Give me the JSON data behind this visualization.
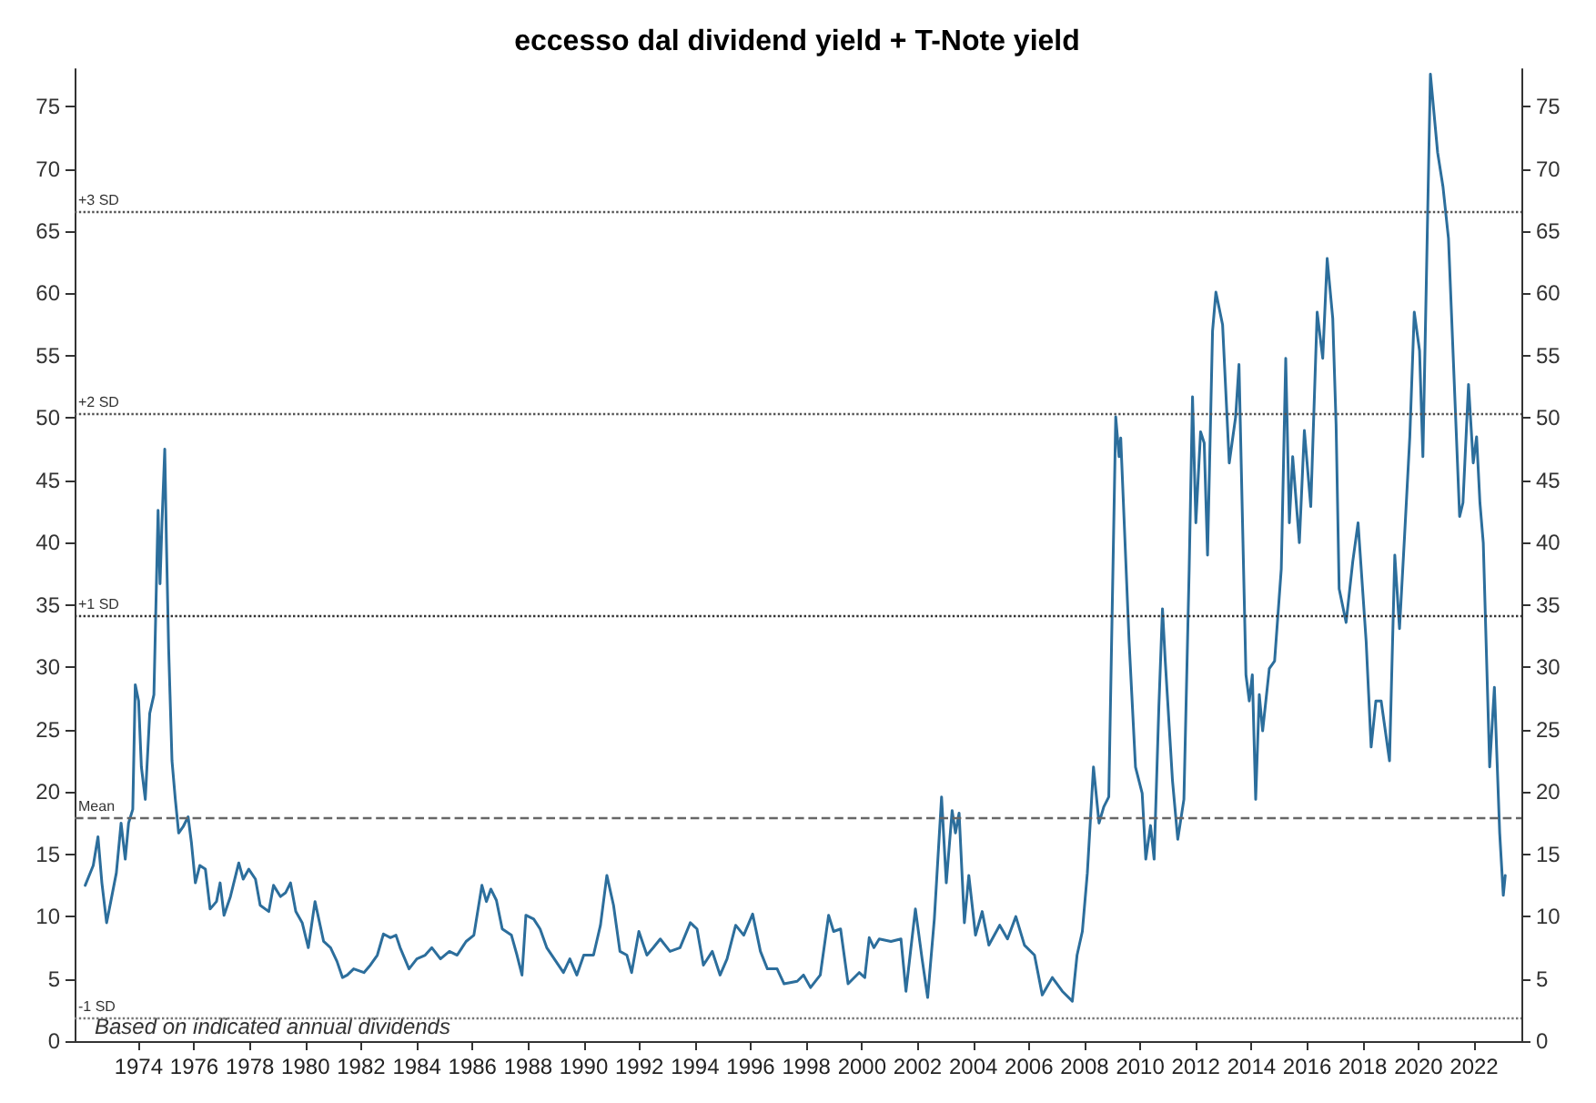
{
  "chart_data": {
    "type": "line",
    "title": "eccesso dal dividend yield + T-Note yield",
    "annotations": [
      "Based on indicated annual dividends"
    ],
    "xlim": [
      1971.7,
      2023.7
    ],
    "xticks": [
      1974,
      1976,
      1978,
      1980,
      1982,
      1984,
      1986,
      1988,
      1990,
      1992,
      1994,
      1996,
      1998,
      2000,
      2002,
      2004,
      2006,
      2008,
      2010,
      2012,
      2014,
      2016,
      2018,
      2020,
      2022
    ],
    "ylim": [
      0,
      78
    ],
    "yticks": [
      0,
      5,
      10,
      15,
      20,
      25,
      30,
      35,
      40,
      45,
      50,
      55,
      60,
      65,
      70,
      75
    ],
    "y2lim": [
      0,
      78
    ],
    "y2ticks": [
      0,
      5,
      10,
      15,
      20,
      25,
      30,
      35,
      40,
      45,
      50,
      55,
      60,
      65,
      70,
      75
    ],
    "grid": false,
    "marker": "none",
    "line_style": "solid",
    "ref_lines": [
      {
        "axis": "y",
        "value": 66.6,
        "label": "+3 SD",
        "line_style": "dotted",
        "color": "#555555"
      },
      {
        "axis": "y",
        "value": 50.4,
        "label": "+2 SD",
        "line_style": "dotted",
        "color": "#555555"
      },
      {
        "axis": "y",
        "value": 34.2,
        "label": "+1 SD",
        "line_style": "dotted",
        "color": "#333333"
      },
      {
        "axis": "y",
        "value": 18,
        "label": "Mean",
        "line_style": "dashed",
        "color": "#666666"
      },
      {
        "axis": "y",
        "value": 1.9,
        "label": "-1 SD",
        "line_style": "dotted",
        "color": "#777777"
      }
    ],
    "series": [
      {
        "color": "#2c6e9c",
        "x": [
          1972.08,
          1972.37,
          1972.54,
          1972.68,
          1972.85,
          1973.0,
          1973.2,
          1973.37,
          1973.52,
          1973.64,
          1973.79,
          1973.88,
          1974.0,
          1974.1,
          1974.24,
          1974.4,
          1974.55,
          1974.7,
          1974.77,
          1974.84,
          1974.94,
          1975.0,
          1975.08,
          1975.2,
          1975.32,
          1975.44,
          1975.6,
          1975.78,
          1975.9,
          1976.04,
          1976.2,
          1976.4,
          1976.57,
          1976.8,
          1976.93,
          1977.07,
          1977.3,
          1977.6,
          1977.76,
          1977.96,
          1978.2,
          1978.37,
          1978.68,
          1978.85,
          1979.1,
          1979.28,
          1979.46,
          1979.65,
          1979.88,
          1980.1,
          1980.34,
          1980.65,
          1980.9,
          1981.13,
          1981.33,
          1981.5,
          1981.73,
          1982.1,
          1982.33,
          1982.58,
          1982.8,
          1983.05,
          1983.25,
          1983.4,
          1983.72,
          1984.0,
          1984.3,
          1984.54,
          1984.85,
          1985.17,
          1985.45,
          1985.77,
          1986.05,
          1986.34,
          1986.5,
          1986.66,
          1986.86,
          1987.07,
          1987.4,
          1987.6,
          1987.78,
          1987.92,
          1988.2,
          1988.43,
          1988.67,
          1989.27,
          1989.5,
          1989.75,
          1990.0,
          1990.35,
          1990.6,
          1990.83,
          1991.07,
          1991.3,
          1991.55,
          1991.72,
          1991.98,
          1992.27,
          1992.5,
          1992.75,
          1993.1,
          1993.46,
          1993.83,
          1994.07,
          1994.3,
          1994.62,
          1994.9,
          1995.15,
          1995.46,
          1995.75,
          1996.07,
          1996.35,
          1996.6,
          1996.95,
          1997.2,
          1997.67,
          1997.9,
          1998.15,
          1998.5,
          1998.8,
          1998.98,
          1999.23,
          1999.5,
          1999.9,
          2000.1,
          2000.26,
          2000.43,
          2000.62,
          2001.04,
          2001.4,
          2001.58,
          2001.92,
          2002.16,
          2002.36,
          2002.6,
          2002.86,
          2003.03,
          2003.24,
          2003.36,
          2003.49,
          2003.68,
          2003.84,
          2004.08,
          2004.32,
          2004.56,
          2004.95,
          2005.23,
          2005.53,
          2005.84,
          2006.2,
          2006.48,
          2006.84,
          2007.2,
          2007.56,
          2007.73,
          2007.92,
          2008.1,
          2008.32,
          2008.52,
          2008.69,
          2008.87,
          2009.12,
          2009.24,
          2009.3,
          2009.6,
          2009.83,
          2010.07,
          2010.2,
          2010.37,
          2010.5,
          2010.67,
          2010.8,
          2010.9,
          2011.16,
          2011.35,
          2011.57,
          2011.76,
          2011.88,
          2012.0,
          2012.17,
          2012.3,
          2012.42,
          2012.6,
          2012.72,
          2012.96,
          2013.2,
          2013.43,
          2013.55,
          2013.8,
          2013.92,
          2014.03,
          2014.15,
          2014.28,
          2014.4,
          2014.64,
          2014.83,
          2015.07,
          2015.23,
          2015.36,
          2015.48,
          2015.72,
          2015.9,
          2016.13,
          2016.36,
          2016.56,
          2016.72,
          2016.92,
          2017.04,
          2017.15,
          2017.4,
          2017.64,
          2017.83,
          2018.12,
          2018.3,
          2018.47,
          2018.66,
          2018.96,
          2019.15,
          2019.32,
          2019.5,
          2019.69,
          2019.85,
          2020.04,
          2020.16,
          2020.43,
          2020.69,
          2020.88,
          2021.08,
          2021.48,
          2021.6,
          2021.8,
          2021.97,
          2022.09,
          2022.21,
          2022.33,
          2022.56,
          2022.73,
          2022.92,
          2023.05,
          2023.12
        ],
        "values": [
          12.5,
          14.1,
          16.4,
          12.7,
          9.5,
          11.2,
          13.5,
          17.5,
          14.6,
          17.5,
          18.6,
          28.6,
          27.3,
          22.0,
          19.4,
          26.3,
          27.8,
          42.6,
          36.7,
          41.6,
          47.5,
          40.0,
          31.5,
          22.5,
          19.4,
          16.7,
          17.2,
          18.0,
          15.9,
          12.7,
          14.1,
          13.8,
          10.6,
          11.2,
          12.7,
          10.1,
          11.6,
          14.3,
          13.0,
          13.8,
          13.0,
          10.9,
          10.4,
          12.5,
          11.6,
          11.9,
          12.7,
          10.4,
          9.5,
          7.5,
          11.2,
          8.0,
          7.5,
          6.4,
          5.1,
          5.3,
          5.8,
          5.5,
          6.1,
          6.9,
          8.6,
          8.3,
          8.5,
          7.5,
          5.8,
          6.6,
          6.9,
          7.5,
          6.6,
          7.2,
          6.9,
          8.0,
          8.5,
          12.5,
          11.2,
          12.2,
          11.3,
          9.0,
          8.5,
          6.9,
          5.3,
          10.1,
          9.8,
          9.0,
          7.5,
          5.5,
          6.6,
          5.3,
          6.9,
          6.9,
          9.3,
          13.3,
          10.9,
          7.2,
          6.9,
          5.5,
          8.8,
          6.9,
          7.5,
          8.2,
          7.2,
          7.5,
          9.5,
          9.0,
          6.1,
          7.2,
          5.3,
          6.6,
          9.3,
          8.5,
          10.2,
          7.2,
          5.8,
          5.8,
          4.6,
          4.8,
          5.3,
          4.3,
          5.3,
          10.1,
          8.8,
          9.0,
          4.6,
          5.5,
          5.1,
          8.3,
          7.5,
          8.2,
          8.0,
          8.2,
          4.0,
          10.6,
          6.6,
          3.5,
          9.8,
          19.6,
          12.7,
          18.5,
          16.7,
          18.3,
          9.5,
          13.3,
          8.5,
          10.4,
          7.7,
          9.3,
          8.2,
          10.0,
          7.7,
          6.9,
          3.7,
          5.1,
          4.0,
          3.2,
          6.9,
          8.8,
          13.5,
          22.0,
          17.5,
          18.8,
          19.6,
          50.1,
          46.9,
          48.4,
          32.1,
          22.0,
          19.9,
          14.6,
          17.3,
          14.6,
          26.8,
          34.7,
          30.5,
          20.9,
          16.2,
          19.4,
          37.9,
          51.7,
          41.6,
          48.9,
          48.0,
          39.0,
          57.0,
          60.1,
          57.5,
          46.4,
          50.1,
          54.3,
          29.4,
          27.3,
          29.4,
          19.4,
          27.8,
          24.9,
          29.9,
          30.5,
          37.9,
          54.8,
          41.6,
          46.9,
          40.0,
          49.0,
          42.9,
          58.5,
          54.8,
          62.8,
          58.0,
          49.5,
          36.3,
          33.6,
          38.5,
          41.6,
          32.1,
          23.6,
          27.3,
          27.3,
          22.5,
          39.0,
          33.1,
          40.5,
          48.5,
          58.5,
          55.4,
          46.9,
          77.6,
          71.3,
          68.6,
          64.4,
          42.1,
          43.2,
          52.7,
          46.4,
          48.5,
          43.2,
          40.0,
          22.0,
          28.4,
          16.7,
          11.7,
          13.3
        ]
      }
    ]
  }
}
